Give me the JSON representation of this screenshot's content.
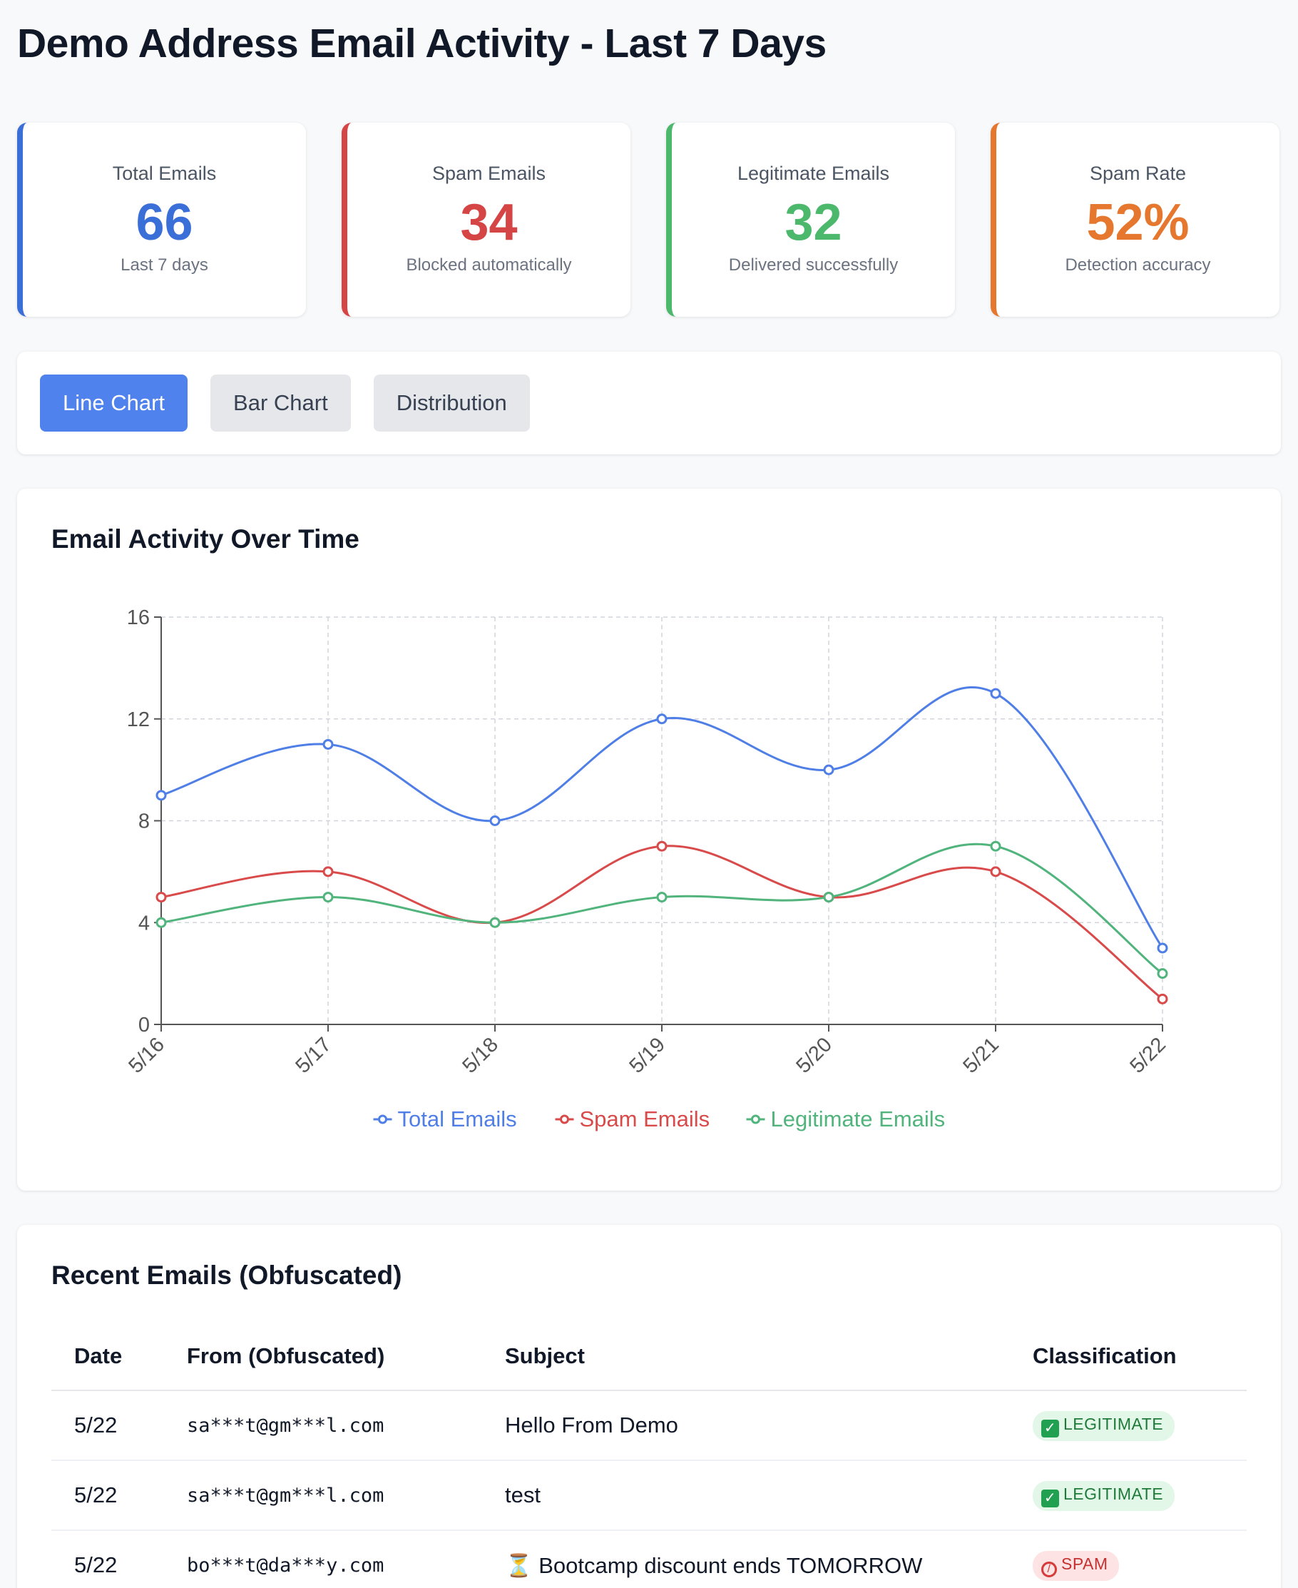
{
  "page": {
    "title": "Demo Address Email Activity - Last 7 Days"
  },
  "stats": [
    {
      "label": "Total Emails",
      "value": "66",
      "sub": "Last 7 days",
      "color": "#3b6fd8"
    },
    {
      "label": "Spam Emails",
      "value": "34",
      "sub": "Blocked automatically",
      "color": "#d64545"
    },
    {
      "label": "Legitimate Emails",
      "value": "32",
      "sub": "Delivered successfully",
      "color": "#4cb86b"
    },
    {
      "label": "Spam Rate",
      "value": "52%",
      "sub": "Detection accuracy",
      "color": "#e5782e"
    }
  ],
  "tabs": [
    {
      "label": "Line Chart",
      "active": true
    },
    {
      "label": "Bar Chart",
      "active": false
    },
    {
      "label": "Distribution",
      "active": false
    }
  ],
  "chart_section": {
    "title": "Email Activity Over Time"
  },
  "chart_data": {
    "type": "line",
    "title": "Email Activity Over Time",
    "x": [
      "5/16",
      "5/17",
      "5/18",
      "5/19",
      "5/20",
      "5/21",
      "5/22"
    ],
    "ylim": [
      0,
      16
    ],
    "yticks": [
      0,
      4,
      8,
      12,
      16
    ],
    "grid": true,
    "legend": "bottom",
    "series": [
      {
        "name": "Total Emails",
        "values": [
          9,
          11,
          8,
          12,
          10,
          13,
          3
        ],
        "color": "#4f7fe6"
      },
      {
        "name": "Spam Emails",
        "values": [
          5,
          6,
          4,
          7,
          5,
          6,
          1
        ],
        "color": "#d94a4a"
      },
      {
        "name": "Legitimate Emails",
        "values": [
          4,
          5,
          4,
          5,
          5,
          7,
          2
        ],
        "color": "#50b47c"
      }
    ]
  },
  "recent": {
    "title": "Recent Emails (Obfuscated)",
    "columns": [
      "Date",
      "From (Obfuscated)",
      "Subject",
      "Classification"
    ],
    "rows": [
      {
        "date": "5/22",
        "from": "sa***t@gm***l.com",
        "subject": "Hello From Demo",
        "classification": "LEGITIMATE",
        "type": "legit",
        "icon": "check-mark-icon"
      },
      {
        "date": "5/22",
        "from": "sa***t@gm***l.com",
        "subject": "test",
        "classification": "LEGITIMATE",
        "type": "legit",
        "icon": "check-mark-icon"
      },
      {
        "date": "5/22",
        "from": "bo***t@da***y.com",
        "subject": "⏳ Bootcamp discount ends TOMORROW",
        "classification": "SPAM",
        "type": "spam",
        "icon": "prohibited-icon"
      }
    ]
  }
}
